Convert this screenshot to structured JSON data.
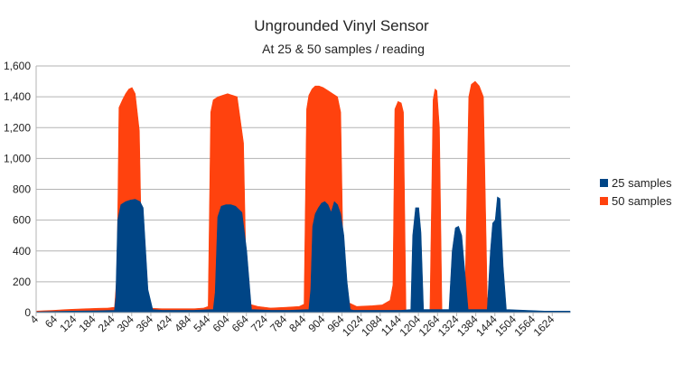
{
  "chart_data": {
    "type": "area",
    "title": "Ungrounded Vinyl Sensor",
    "subtitle": "At 25 & 50 samples / reading",
    "xlabel": "",
    "ylabel": "",
    "xlim": [
      4,
      1680
    ],
    "ylim": [
      0,
      1600
    ],
    "y_ticks": [
      0,
      200,
      400,
      600,
      800,
      1000,
      1200,
      1400,
      1600
    ],
    "y_tick_labels": [
      "0",
      "200",
      "400",
      "600",
      "800",
      "1,000",
      "1,200",
      "1,400",
      "1,600"
    ],
    "x_ticks": [
      4,
      64,
      124,
      184,
      244,
      304,
      364,
      424,
      484,
      544,
      604,
      664,
      724,
      784,
      844,
      904,
      964,
      1024,
      1084,
      1144,
      1204,
      1264,
      1324,
      1384,
      1444,
      1504,
      1564,
      1624
    ],
    "grid": true,
    "legend_position": "right",
    "series": [
      {
        "name": "50 samples",
        "color": "#ff420e",
        "x": [
          4,
          60,
          100,
          160,
          200,
          230,
          250,
          258,
          264,
          275,
          285,
          295,
          305,
          315,
          328,
          338,
          350,
          400,
          460,
          500,
          530,
          544,
          552,
          560,
          575,
          590,
          605,
          620,
          635,
          655,
          665,
          700,
          740,
          790,
          830,
          845,
          853,
          860,
          870,
          880,
          892,
          905,
          920,
          935,
          950,
          960,
          970,
          1010,
          1060,
          1090,
          1115,
          1124,
          1130,
          1140,
          1150,
          1157,
          1165,
          1240,
          1250,
          1256,
          1262,
          1270,
          1278,
          1292,
          1350,
          1362,
          1370,
          1382,
          1395,
          1408,
          1420,
          1440,
          1500,
          1560,
          1620,
          1680
        ],
        "values": [
          10,
          15,
          20,
          25,
          28,
          30,
          35,
          260,
          1330,
          1380,
          1420,
          1450,
          1460,
          1420,
          1180,
          80,
          30,
          25,
          25,
          25,
          30,
          40,
          1300,
          1380,
          1400,
          1410,
          1420,
          1410,
          1400,
          1100,
          60,
          40,
          30,
          35,
          40,
          55,
          1320,
          1410,
          1450,
          1470,
          1470,
          1460,
          1440,
          1420,
          1400,
          1300,
          80,
          40,
          45,
          50,
          80,
          180,
          1320,
          1370,
          1360,
          1300,
          0,
          0,
          1380,
          1450,
          1440,
          1200,
          0,
          0,
          80,
          1400,
          1480,
          1500,
          1470,
          1400,
          100,
          0,
          0,
          0,
          0,
          0
        ],
        "smooth": false
      },
      {
        "name": "25 samples",
        "color": "#004586",
        "x": [
          4,
          60,
          120,
          200,
          250,
          254,
          260,
          270,
          285,
          300,
          315,
          330,
          340,
          355,
          370,
          400,
          460,
          500,
          560,
          566,
          574,
          585,
          600,
          615,
          630,
          650,
          665,
          680,
          740,
          800,
          860,
          866,
          872,
          880,
          890,
          900,
          910,
          920,
          930,
          940,
          950,
          960,
          970,
          980,
          990,
          1000,
          1050,
          1150,
          1180,
          1186,
          1195,
          1205,
          1212,
          1220,
          1260,
          1300,
          1310,
          1320,
          1330,
          1340,
          1360,
          1420,
          1430,
          1437,
          1445,
          1452,
          1460,
          1470,
          1480,
          1540,
          1600,
          1680
        ],
        "values": [
          5,
          8,
          10,
          12,
          15,
          100,
          600,
          700,
          720,
          730,
          735,
          720,
          680,
          150,
          20,
          15,
          15,
          15,
          20,
          130,
          620,
          690,
          700,
          700,
          690,
          650,
          400,
          20,
          15,
          15,
          20,
          150,
          560,
          640,
          680,
          710,
          720,
          700,
          650,
          720,
          700,
          640,
          500,
          200,
          20,
          15,
          15,
          15,
          20,
          500,
          680,
          680,
          520,
          20,
          20,
          20,
          400,
          550,
          560,
          500,
          20,
          20,
          400,
          580,
          600,
          750,
          740,
          300,
          20,
          15,
          10,
          10
        ],
        "smooth": false
      }
    ],
    "legend": [
      "25 samples",
      "50 samples"
    ],
    "legend_colors": [
      "#004586",
      "#ff420e"
    ]
  }
}
